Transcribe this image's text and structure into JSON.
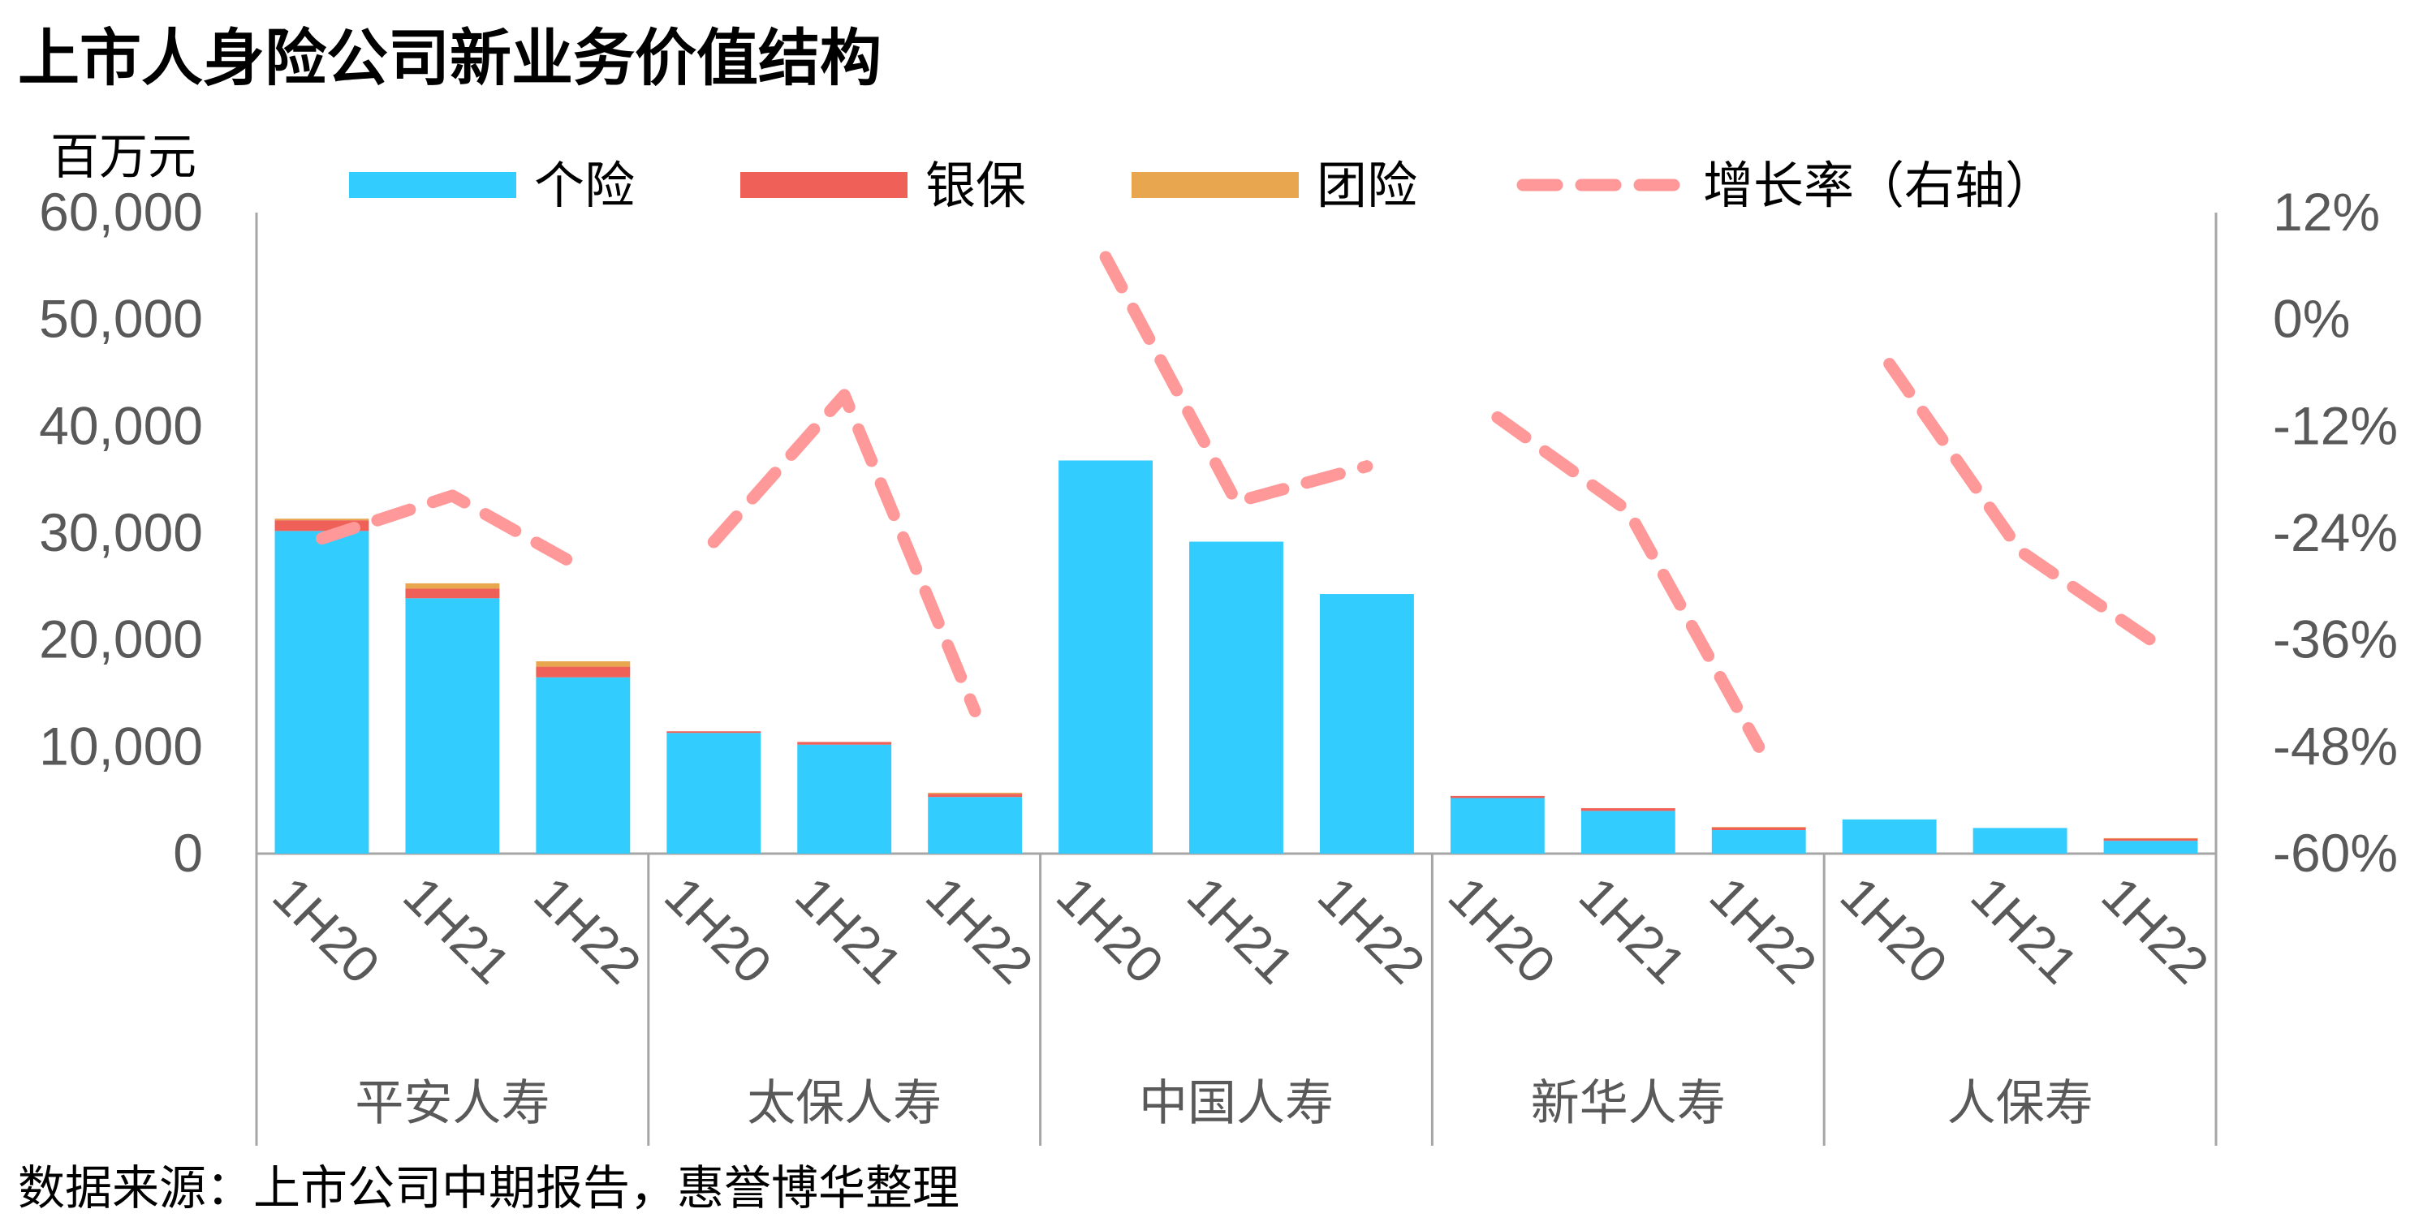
{
  "chart_data": {
    "type": "bar",
    "title": "上市人身险公司新业务价值结构",
    "ylabel_left": "百万元",
    "source": "数据来源：上市公司中期报告，惠誉博华整理",
    "groups": [
      "平安人寿",
      "太保人寿",
      "中国人寿",
      "新华人寿",
      "人保寿"
    ],
    "periods": [
      "1H20",
      "1H21",
      "1H22"
    ],
    "categories": [
      "1H20",
      "1H21",
      "1H22",
      "1H20",
      "1H21",
      "1H22",
      "1H20",
      "1H21",
      "1H22",
      "1H20",
      "1H21",
      "1H22",
      "1H20",
      "1H21",
      "1H22"
    ],
    "series": [
      {
        "name": "个险",
        "kind": "bar",
        "color": "#33CCFF",
        "values": [
          30200,
          23900,
          16500,
          11300,
          10200,
          5300,
          36800,
          29200,
          24300,
          5200,
          4000,
          2200,
          3200,
          2400,
          1200
        ]
      },
      {
        "name": "银保",
        "kind": "bar",
        "color": "#EE6058",
        "values": [
          1000,
          900,
          1000,
          150,
          250,
          300,
          0,
          0,
          0,
          200,
          250,
          250,
          0,
          0,
          200
        ]
      },
      {
        "name": "团险",
        "kind": "bar",
        "color": "#E8A64E",
        "values": [
          150,
          500,
          500,
          0,
          0,
          100,
          0,
          0,
          0,
          0,
          0,
          50,
          0,
          0,
          50
        ]
      },
      {
        "name": "增长率（右轴）",
        "kind": "line",
        "axis": "right",
        "color": "#FF9999",
        "dash": true,
        "values": [
          -24.6,
          -19.8,
          -28.0,
          -25.0,
          -8.5,
          -44.0,
          7.0,
          -20.5,
          -16.5,
          -11.0,
          -21.5,
          -48.0,
          -5.0,
          -26.0,
          -36.0
        ]
      }
    ],
    "ylim_left": [
      0,
      60000
    ],
    "yticks_left": [
      "0",
      "10,000",
      "20,000",
      "30,000",
      "40,000",
      "50,000",
      "60,000"
    ],
    "ylim_right": [
      -60,
      12
    ],
    "yticks_right": [
      "-60%",
      "-48%",
      "-36%",
      "-24%",
      "-12%",
      "0%",
      "12%"
    ],
    "legend_position": "top",
    "grid": false
  }
}
